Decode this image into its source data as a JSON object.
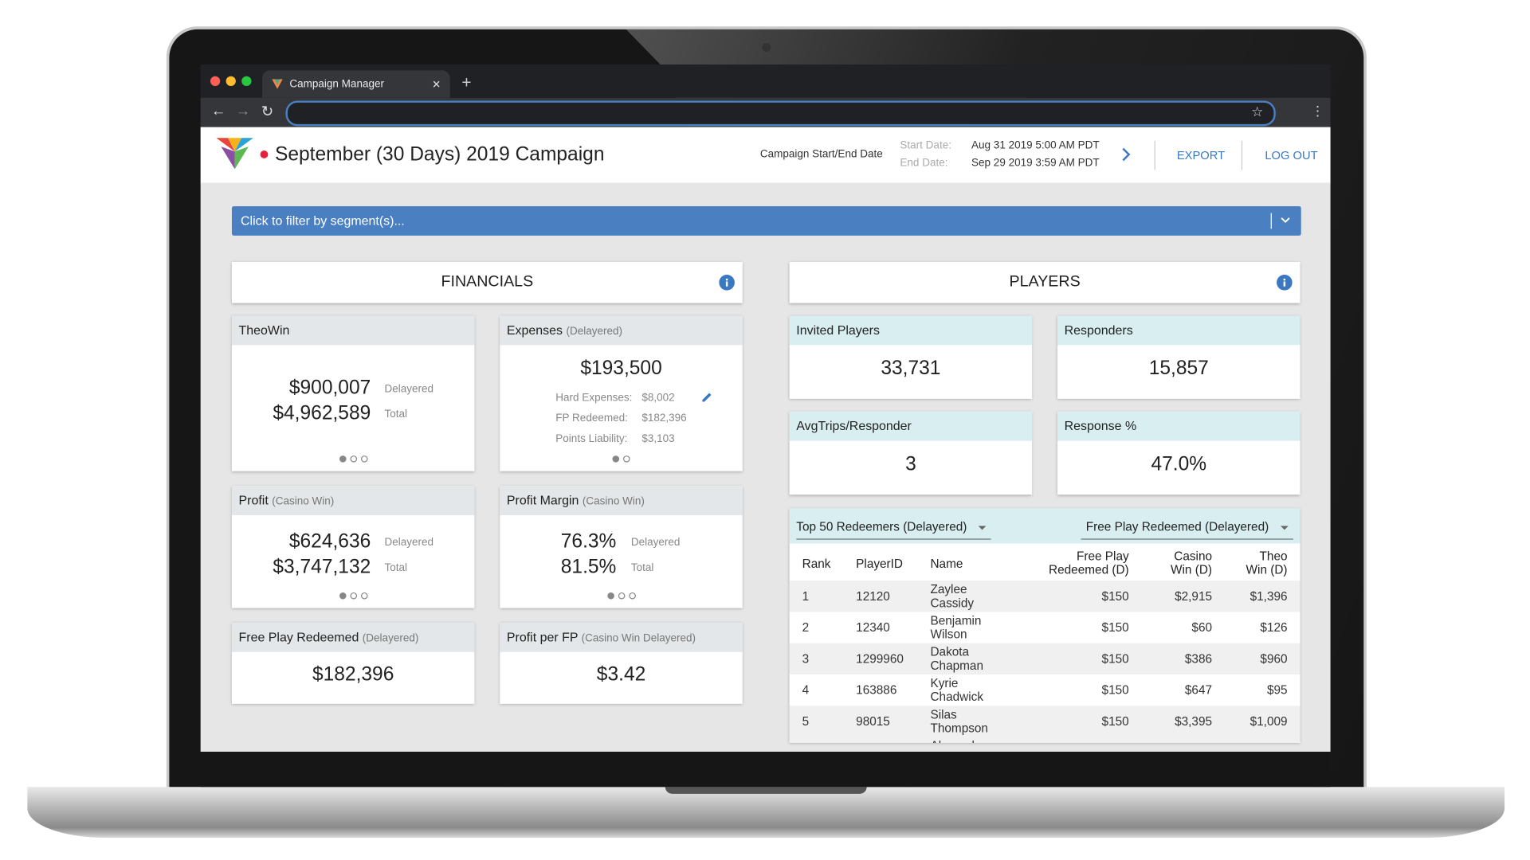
{
  "browser": {
    "tab_title": "Campaign Manager"
  },
  "header": {
    "title": "September (30 Days) 2019 Campaign",
    "dates_label": "Campaign Start/End Date",
    "start_label": "Start Date:",
    "start_value": "Aug 31 2019 5:00 AM PDT",
    "end_label": "End Date:",
    "end_value": "Sep 29 2019 3:59 AM PDT",
    "export": "EXPORT",
    "logout": "LOG OUT"
  },
  "filter": {
    "placeholder": "Click to filter by segment(s)..."
  },
  "financials": {
    "title": "FINANCIALS",
    "theowin": {
      "title": "TheoWin",
      "value1": "$900,007",
      "label1": "Delayered",
      "value2": "$4,962,589",
      "label2": "Total"
    },
    "expenses": {
      "title": "Expenses",
      "subtitle": "(Delayered)",
      "value": "$193,500",
      "rows": [
        [
          "Hard Expenses:",
          "$8,002"
        ],
        [
          "FP Redeemed:",
          "$182,396"
        ],
        [
          "Points Liability:",
          "$3,103"
        ]
      ]
    },
    "profit": {
      "title": "Profit",
      "subtitle": "(Casino Win)",
      "value1": "$624,636",
      "label1": "Delayered",
      "value2": "$3,747,132",
      "label2": "Total"
    },
    "margin": {
      "title": "Profit Margin",
      "subtitle": "(Casino Win)",
      "value1": "76.3%",
      "label1": "Delayered",
      "value2": "81.5%",
      "label2": "Total"
    },
    "fp": {
      "title": "Free Play Redeemed",
      "subtitle": "(Delayered)",
      "value": "$182,396"
    },
    "perfp": {
      "title": "Profit per FP",
      "subtitle": "(Casino Win Delayered)",
      "value": "$3.42"
    }
  },
  "players": {
    "title": "PLAYERS",
    "cards": [
      {
        "title": "Invited Players",
        "value": "33,731"
      },
      {
        "title": "Responders",
        "value": "15,857"
      },
      {
        "title": "AvgTrips/Responder",
        "value": "3"
      },
      {
        "title": "Response %",
        "value": "47.0%"
      }
    ],
    "table": {
      "dropdown1": "Top 50 Redeemers (Delayered)",
      "dropdown2": "Free Play Redeemed (Delayered)",
      "columns": [
        "Rank",
        "PlayerID",
        "Name",
        "Free Play Redeemed (D)",
        "Casino Win (D)",
        "Theo Win (D)"
      ],
      "rows": [
        [
          "1",
          "12120",
          "Zaylee Cassidy",
          "$150",
          "$2,915",
          "$1,396"
        ],
        [
          "2",
          "12340",
          "Benjamin Wilson",
          "$150",
          "$60",
          "$126"
        ],
        [
          "3",
          "1299960",
          "Dakota Chapman",
          "$150",
          "$386",
          "$960"
        ],
        [
          "4",
          "163886",
          "Kyrie Chadwick",
          "$150",
          "$647",
          "$95"
        ],
        [
          "5",
          "98015",
          "Silas Thompson",
          "$150",
          "$3,395",
          "$1,009"
        ]
      ],
      "partial_row_name": "Alexander"
    }
  }
}
